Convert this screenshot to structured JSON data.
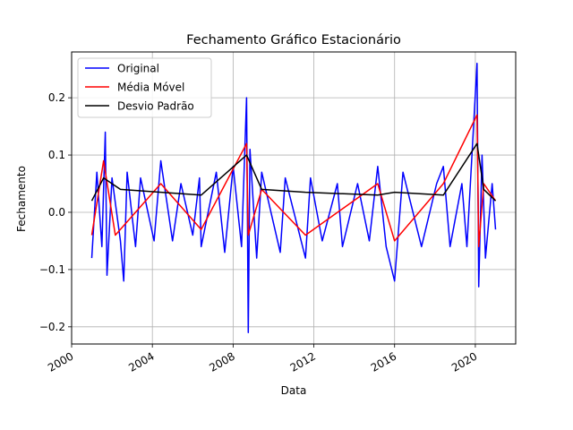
{
  "chart_data": {
    "type": "line",
    "title": "Fechamento Gráfico Estacionário",
    "xlabel": "Data",
    "ylabel": "Fechamento",
    "xlim": [
      "2000-01-01",
      "2022-01-01"
    ],
    "ylim": [
      -0.23,
      0.28
    ],
    "x_ticks": [
      "2000",
      "2004",
      "2008",
      "2012",
      "2016",
      "2020"
    ],
    "y_ticks": [
      "0.2",
      "0.1",
      "0.0",
      "−0.1",
      "−0.2"
    ],
    "y_tick_values": [
      0.2,
      0.1,
      0.0,
      -0.1,
      -0.2
    ],
    "grid": true,
    "legend_position": "upper-left",
    "colors": {
      "original": "#0000ff",
      "media": "#ff0000",
      "desvio": "#000000"
    },
    "series": [
      {
        "name": "Original",
        "color": "#0000ff",
        "points": [
          [
            "2001-01",
            -0.08
          ],
          [
            "2001-04",
            0.07
          ],
          [
            "2001-07",
            -0.06
          ],
          [
            "2001-09",
            0.14
          ],
          [
            "2001-10",
            -0.11
          ],
          [
            "2002-01",
            0.06
          ],
          [
            "2002-06",
            -0.05
          ],
          [
            "2002-08",
            -0.12
          ],
          [
            "2002-10",
            0.07
          ],
          [
            "2003-03",
            -0.06
          ],
          [
            "2003-06",
            0.06
          ],
          [
            "2004-02",
            -0.05
          ],
          [
            "2004-06",
            0.09
          ],
          [
            "2005-01",
            -0.05
          ],
          [
            "2005-06",
            0.05
          ],
          [
            "2006-01",
            -0.04
          ],
          [
            "2006-05",
            0.06
          ],
          [
            "2006-06",
            -0.06
          ],
          [
            "2007-03",
            0.07
          ],
          [
            "2007-08",
            -0.07
          ],
          [
            "2008-01",
            0.08
          ],
          [
            "2008-06",
            -0.06
          ],
          [
            "2008-09",
            0.2
          ],
          [
            "2008-10",
            -0.21
          ],
          [
            "2008-11",
            0.11
          ],
          [
            "2009-03",
            -0.08
          ],
          [
            "2009-06",
            0.07
          ],
          [
            "2010-05",
            -0.07
          ],
          [
            "2010-08",
            0.06
          ],
          [
            "2011-08",
            -0.08
          ],
          [
            "2011-11",
            0.06
          ],
          [
            "2012-06",
            -0.05
          ],
          [
            "2013-03",
            0.05
          ],
          [
            "2013-06",
            -0.06
          ],
          [
            "2014-03",
            0.05
          ],
          [
            "2014-10",
            -0.05
          ],
          [
            "2015-03",
            0.08
          ],
          [
            "2015-08",
            -0.06
          ],
          [
            "2016-01",
            -0.12
          ],
          [
            "2016-06",
            0.07
          ],
          [
            "2017-05",
            -0.06
          ],
          [
            "2018-02",
            0.05
          ],
          [
            "2018-06",
            0.08
          ],
          [
            "2018-10",
            -0.06
          ],
          [
            "2019-05",
            0.05
          ],
          [
            "2019-08",
            -0.06
          ],
          [
            "2020-02",
            0.26
          ],
          [
            "2020-03",
            -0.13
          ],
          [
            "2020-05",
            0.1
          ],
          [
            "2020-07",
            -0.08
          ],
          [
            "2020-11",
            0.05
          ],
          [
            "2021-01",
            -0.03
          ]
        ]
      },
      {
        "name": "Média Móvel",
        "color": "#ff0000",
        "points": [
          [
            "2001-01",
            -0.04
          ],
          [
            "2001-08",
            0.09
          ],
          [
            "2002-03",
            -0.04
          ],
          [
            "2004-06",
            0.05
          ],
          [
            "2006-06",
            -0.03
          ],
          [
            "2008-09",
            0.12
          ],
          [
            "2008-10",
            -0.04
          ],
          [
            "2009-06",
            0.04
          ],
          [
            "2011-08",
            -0.04
          ],
          [
            "2015-03",
            0.05
          ],
          [
            "2016-01",
            -0.05
          ],
          [
            "2018-06",
            0.05
          ],
          [
            "2020-02",
            0.17
          ],
          [
            "2020-03",
            -0.06
          ],
          [
            "2020-06",
            0.05
          ],
          [
            "2021-01",
            0.02
          ]
        ]
      },
      {
        "name": "Desvio Padrão",
        "color": "#000000",
        "points": [
          [
            "2001-01",
            0.02
          ],
          [
            "2001-08",
            0.06
          ],
          [
            "2002-06",
            0.04
          ],
          [
            "2004-06",
            0.035
          ],
          [
            "2006-06",
            0.03
          ],
          [
            "2008-09",
            0.1
          ],
          [
            "2009-06",
            0.04
          ],
          [
            "2011-08",
            0.035
          ],
          [
            "2015-03",
            0.03
          ],
          [
            "2016-01",
            0.035
          ],
          [
            "2018-06",
            0.03
          ],
          [
            "2020-02",
            0.12
          ],
          [
            "2020-06",
            0.04
          ],
          [
            "2021-01",
            0.02
          ]
        ]
      }
    ]
  }
}
